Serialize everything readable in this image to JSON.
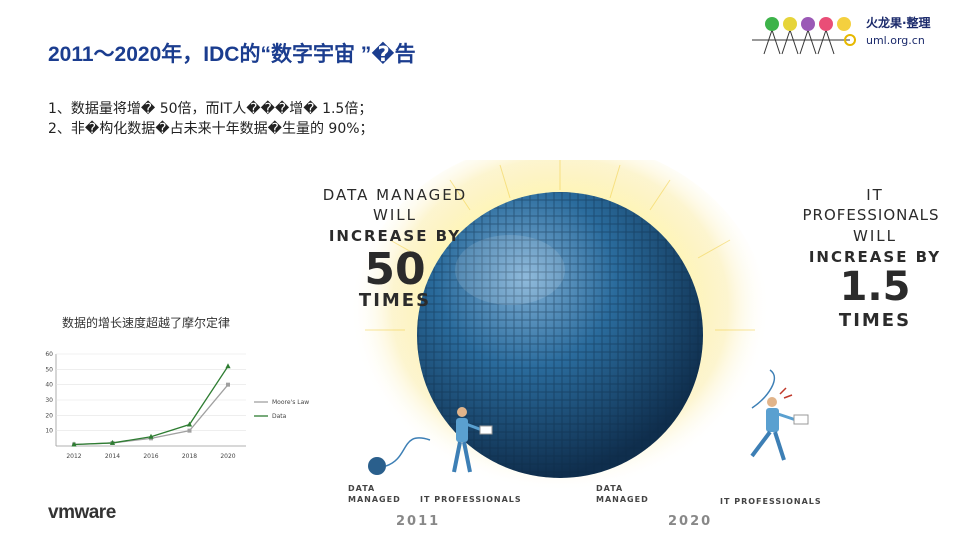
{
  "title": "2011～2020年，IDC的“数字宇宙 ”�告",
  "bullets": [
    "1、数据量将增� 50倍，而IT人���增� 1.5倍；",
    "2、非�构化数据�占未来十年数据�生量的    90%；"
  ],
  "logo": {
    "name": "火龙果·整理",
    "url": "uml.org.cn"
  },
  "left_claim": {
    "l1": "DATA MANAGED",
    "l2": "WILL",
    "l3": "INCREASE BY",
    "num": "50",
    "l5": "TIMES"
  },
  "right_claim": {
    "l1": "IT",
    "l2": "PROFESSIONALS",
    "l3": "WILL",
    "l4": "INCREASE BY",
    "num": "1.5",
    "l6": "TIMES"
  },
  "captions": {
    "data_managed_2011": [
      "DATA",
      "MANAGED"
    ],
    "it_pros_2011": "IT PROFESSIONALS",
    "data_managed_2020": [
      "DATA",
      "MANAGED"
    ],
    "it_pros_2020": "IT PROFESSIONALS",
    "year_2011": "2011",
    "year_2020": "2020"
  },
  "brand": "vmware",
  "colors": {
    "title": "#1b3d8f",
    "sphere": "#1f5f8f",
    "glow": "#f3e38a",
    "data_series": "#2e7d32",
    "moore_series": "#a0a0a0"
  },
  "chart_data": {
    "type": "line",
    "title": "数据的增长速度超越了摩尔定律",
    "x": [
      "2012",
      "2014",
      "2016",
      "2018",
      "2020"
    ],
    "y_ticks": [
      10,
      20,
      30,
      40,
      50,
      60
    ],
    "ylim": [
      0,
      60
    ],
    "series": [
      {
        "name": "Moore's Law",
        "values": [
          1,
          2,
          5,
          10,
          40
        ]
      },
      {
        "name": "Data",
        "values": [
          1,
          2,
          6,
          14,
          52
        ]
      }
    ],
    "legend": "right"
  }
}
